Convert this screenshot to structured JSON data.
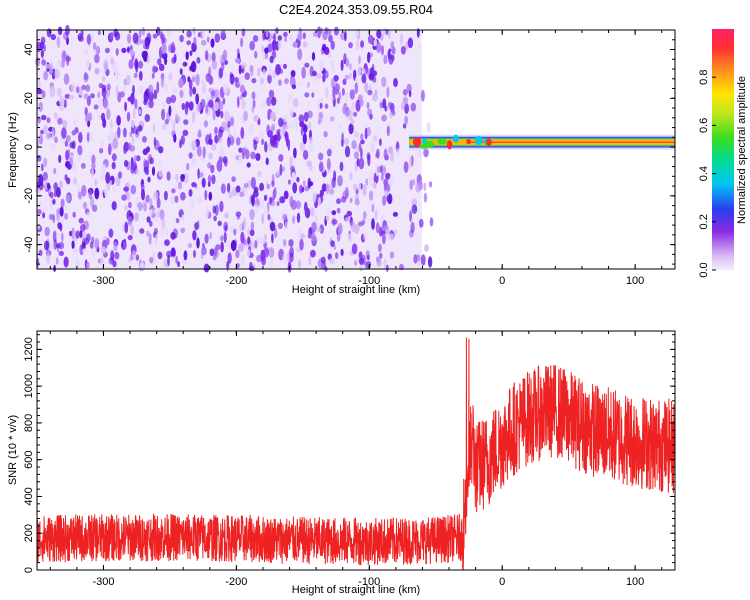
{
  "chart_data": [
    {
      "type": "heatmap",
      "title": "C2E4.2024.353.09.55.R04",
      "xlabel": "Height of straight line (km)",
      "ylabel": "Frequency (Hz)",
      "xlim": [
        -350,
        130
      ],
      "ylim": [
        -50,
        48
      ],
      "x_ticks": [
        "-300",
        "-200",
        "-100",
        "0",
        "100"
      ],
      "x_tick_values": [
        -300,
        -200,
        -100,
        0,
        100
      ],
      "y_ticks": [
        "-40",
        "-20",
        "0",
        "20",
        "40"
      ],
      "y_tick_values": [
        -40,
        -20,
        0,
        20,
        40
      ],
      "colorbar": {
        "label": "Normalized spectral amplitude",
        "range": [
          0,
          1
        ],
        "ticks": [
          "0.0",
          "0.2",
          "0.4",
          "0.6",
          "0.8"
        ],
        "tick_values": [
          0,
          0.2,
          0.4,
          0.6,
          0.8
        ]
      },
      "regions": [
        {
          "x": [
            -350,
            -50
          ],
          "freq": [
            -50,
            48
          ],
          "amplitude": 0.1,
          "description": "broadband noise"
        },
        {
          "x": [
            -70,
            130
          ],
          "freq": [
            1,
            3
          ],
          "amplitude": 0.9,
          "description": "narrow tone near 2 Hz"
        }
      ]
    },
    {
      "type": "line",
      "xlabel": "Height of straight line (km)",
      "ylabel": "SNR (10 * v/v)",
      "xlim": [
        -350,
        130
      ],
      "ylim": [
        0,
        1300
      ],
      "x_ticks": [
        "-300",
        "-200",
        "-100",
        "0",
        "100"
      ],
      "x_tick_values": [
        -300,
        -200,
        -100,
        0,
        100
      ],
      "y_ticks": [
        "0",
        "200",
        "400",
        "600",
        "800",
        "1000",
        "1200"
      ],
      "y_tick_values": [
        0,
        200,
        400,
        600,
        800,
        1000,
        1200
      ],
      "series": [
        {
          "x": [
            -350,
            -300,
            -250,
            -200,
            -150,
            -100,
            -60,
            -40,
            -30,
            -25,
            -22,
            -20,
            -10,
            0,
            10,
            20,
            30,
            40,
            50,
            60,
            70,
            80,
            90,
            100,
            110,
            120,
            130
          ],
          "y": [
            170,
            175,
            178,
            172,
            160,
            155,
            160,
            170,
            180,
            600,
            700,
            550,
            600,
            700,
            780,
            830,
            860,
            870,
            830,
            790,
            760,
            740,
            720,
            700,
            690,
            680,
            670
          ],
          "color": "#ee2222"
        }
      ]
    }
  ],
  "colors": {
    "line": "#ee2222",
    "noise": "#6a1ae6",
    "tone_core": "#ff2a2a"
  }
}
